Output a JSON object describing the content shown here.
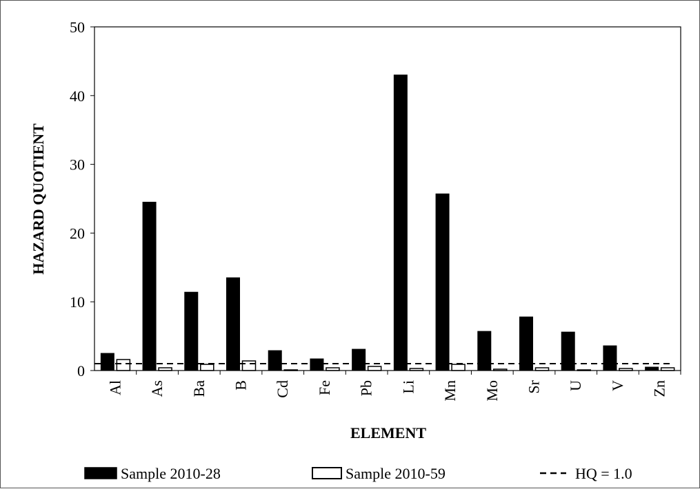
{
  "chart_data": {
    "type": "bar",
    "title": "",
    "xlabel": "ELEMENT",
    "ylabel": "HAZARD QUOTIENT",
    "ylim": [
      0,
      50
    ],
    "yticks": [
      0,
      10,
      20,
      30,
      40,
      50
    ],
    "categories": [
      "Al",
      "As",
      "Ba",
      "B",
      "Cd",
      "Fe",
      "Pb",
      "Li",
      "Mn",
      "Mo",
      "Sr",
      "U",
      "V",
      "Zn"
    ],
    "series": [
      {
        "name": "Sample 2010-28",
        "color": "#000000",
        "fill": "solid",
        "values": [
          2.5,
          24.5,
          11.4,
          13.5,
          2.9,
          1.7,
          3.1,
          43.0,
          25.7,
          5.7,
          7.8,
          5.6,
          3.6,
          0.5
        ]
      },
      {
        "name": "Sample 2010-59",
        "color": "#ffffff",
        "fill": "outline",
        "values": [
          1.6,
          0.4,
          0.9,
          1.4,
          0.1,
          0.4,
          0.6,
          0.3,
          0.9,
          0.2,
          0.4,
          0.1,
          0.3,
          0.4
        ]
      }
    ],
    "reference_line": {
      "name": "HQ = 1.0",
      "value": 1.0,
      "style": "dashed"
    },
    "legend": {
      "position": "bottom",
      "entries": [
        "Sample 2010-28",
        "Sample 2010-59",
        "HQ = 1.0"
      ]
    },
    "grid": false
  }
}
